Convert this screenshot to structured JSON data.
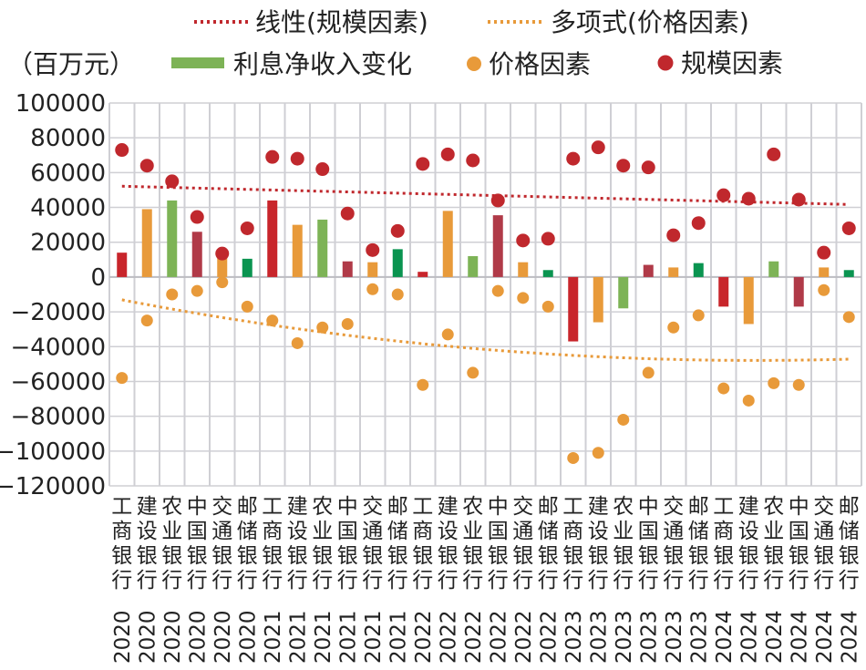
{
  "chart_data": {
    "type": "bar",
    "unit_label": "（百万元）",
    "ylim": [
      -120000,
      100000
    ],
    "y_ticks": [
      "100000",
      "80000",
      "60000",
      "40000",
      "20000",
      "0",
      "−20000",
      "−40000",
      "−60000",
      "−80000",
      "−100000",
      "−120000"
    ],
    "y_tick_values": [
      100000,
      80000,
      60000,
      40000,
      20000,
      0,
      -20000,
      -40000,
      -60000,
      -80000,
      -100000,
      -120000
    ],
    "grid": true,
    "legend_position": "top",
    "legend": {
      "trend_scale": "线性(规模因素)",
      "trend_price": "多项式(价格因素)",
      "bar": "利息净收入变化",
      "price": "价格因素",
      "scale": "规模因素"
    },
    "colors": {
      "trend_scale": "#c0282d",
      "trend_price": "#e89a3a",
      "price": "#e89a3a",
      "scale": "#c0282d"
    },
    "categories": [
      {
        "bank": "工商银行",
        "year": "2020"
      },
      {
        "bank": "建设银行",
        "year": "2020"
      },
      {
        "bank": "农业银行",
        "year": "2020"
      },
      {
        "bank": "中国银行",
        "year": "2020"
      },
      {
        "bank": "交通银行",
        "year": "2020"
      },
      {
        "bank": "邮储银行",
        "year": "2020"
      },
      {
        "bank": "工商银行",
        "year": "2021"
      },
      {
        "bank": "建设银行",
        "year": "2021"
      },
      {
        "bank": "农业银行",
        "year": "2021"
      },
      {
        "bank": "中国银行",
        "year": "2021"
      },
      {
        "bank": "交通银行",
        "year": "2021"
      },
      {
        "bank": "邮储银行",
        "year": "2021"
      },
      {
        "bank": "工商银行",
        "year": "2022"
      },
      {
        "bank": "建设银行",
        "year": "2022"
      },
      {
        "bank": "农业银行",
        "year": "2022"
      },
      {
        "bank": "中国银行",
        "year": "2022"
      },
      {
        "bank": "交通银行",
        "year": "2022"
      },
      {
        "bank": "邮储银行",
        "year": "2022"
      },
      {
        "bank": "工商银行",
        "year": "2023"
      },
      {
        "bank": "建设银行",
        "year": "2023"
      },
      {
        "bank": "农业银行",
        "year": "2023"
      },
      {
        "bank": "中国银行",
        "year": "2023"
      },
      {
        "bank": "交通银行",
        "year": "2023"
      },
      {
        "bank": "邮储银行",
        "year": "2023"
      },
      {
        "bank": "工商银行",
        "year": "2024"
      },
      {
        "bank": "建设银行",
        "year": "2024"
      },
      {
        "bank": "农业银行",
        "year": "2024"
      },
      {
        "bank": "中国银行",
        "year": "2024"
      },
      {
        "bank": "交通银行",
        "year": "2024"
      },
      {
        "bank": "邮储银行",
        "year": "2024"
      }
    ],
    "bank_colors": {
      "工商银行": "#c8252b",
      "建设银行": "#e89a3a",
      "农业银行": "#7db356",
      "中国银行": "#b03a48",
      "交通银行": "#e89a3a",
      "邮储银行": "#0a9450"
    },
    "series": [
      {
        "name": "利息净收入变化",
        "values": [
          14000,
          39000,
          44000,
          26000,
          11000,
          10500,
          44000,
          30000,
          33000,
          9000,
          8500,
          16000,
          3000,
          38000,
          12000,
          35500,
          8500,
          4000,
          -37000,
          -26000,
          -18000,
          7000,
          5500,
          8000,
          -17000,
          -27000,
          9000,
          -17000,
          5500,
          4000
        ]
      },
      {
        "name": "价格因素",
        "values": [
          -58000,
          -25000,
          -10000,
          -8000,
          -3000,
          -17000,
          -25000,
          -38000,
          -29000,
          -27000,
          -7000,
          -10000,
          -62000,
          -33000,
          -55000,
          -8000,
          -12000,
          -17000,
          -104000,
          -101000,
          -82000,
          -55000,
          -29000,
          -22000,
          -64000,
          -71000,
          -61000,
          -62000,
          -7500,
          -23000
        ]
      },
      {
        "name": "规模因素",
        "values": [
          73000,
          64000,
          55000,
          34500,
          13500,
          28000,
          69000,
          68000,
          62000,
          36500,
          15500,
          26500,
          65000,
          70500,
          67000,
          44000,
          21000,
          22000,
          68000,
          74500,
          64000,
          63000,
          24000,
          31000,
          47000,
          45000,
          70500,
          44500,
          14000,
          28000
        ]
      }
    ]
  }
}
